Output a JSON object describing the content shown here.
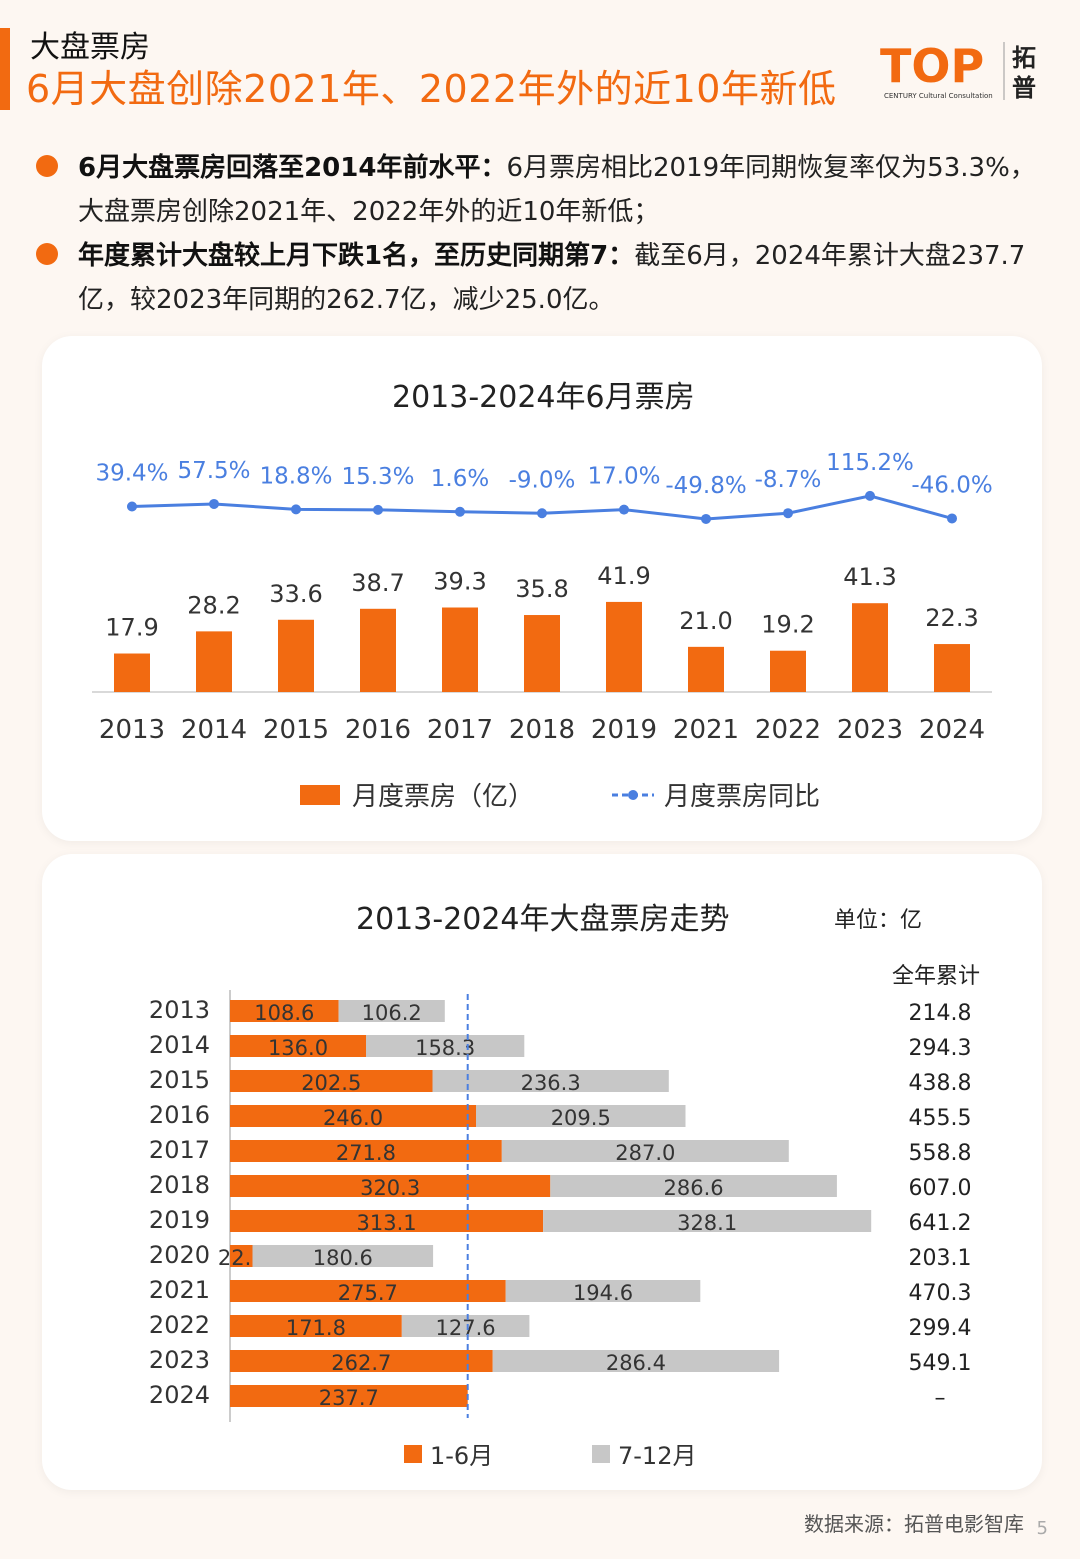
{
  "header": {
    "kicker": "大盘票房",
    "title": "6月大盘创除2021年、2022年外的近10年新低",
    "logo_text": "TOP",
    "logo_sub": "CENTURY Cultural Consultation",
    "logo_brand": "拓普"
  },
  "bullets": [
    {
      "bold": "6月大盘票房回落至2014年前水平：",
      "text": "6月票房相比2019年同期恢复率仅为53.3%，大盘票房创除2021年、2022年外的近10年新低；"
    },
    {
      "bold": "年度累计大盘较上月下跌1名，至历史同期第7：",
      "text": "截至6月，2024年累计大盘237.7亿，较2023年同期的262.7亿，减少25.0亿。"
    }
  ],
  "colors": {
    "accent": "#f26a11",
    "line": "#4a7fe0",
    "gray": "#c7c7c7"
  },
  "chart_data": [
    {
      "type": "bar",
      "title": "2013-2024年6月票房",
      "categories": [
        "2013",
        "2014",
        "2015",
        "2016",
        "2017",
        "2018",
        "2019",
        "2021",
        "2022",
        "2023",
        "2024"
      ],
      "series": [
        {
          "name": "月度票房（亿）",
          "type": "bar",
          "values": [
            17.9,
            28.2,
            33.6,
            38.7,
            39.3,
            35.8,
            41.9,
            21.0,
            19.2,
            41.3,
            22.3
          ]
        },
        {
          "name": "月度票房同比",
          "type": "line",
          "values": [
            39.4,
            57.5,
            18.8,
            15.3,
            1.6,
            -9.0,
            17.0,
            -49.8,
            -8.7,
            115.2,
            -46.0
          ],
          "labels": [
            "39.4%",
            "57.5%",
            "18.8%",
            "15.3%",
            "1.6%",
            "-9.0%",
            "17.0%",
            "-49.8%",
            "-8.7%",
            "115.2%",
            "-46.0%"
          ]
        }
      ],
      "bar_labels": [
        "17.9",
        "28.2",
        "33.6",
        "38.7",
        "39.3",
        "35.8",
        "41.9",
        "21.0",
        "19.2",
        "41.3",
        "22.3"
      ]
    },
    {
      "type": "bar",
      "orientation": "horizontal",
      "stacked": true,
      "title": "2013-2024年大盘票房走势",
      "unit": "单位：亿",
      "total_header": "全年累计",
      "categories": [
        "2013",
        "2014",
        "2015",
        "2016",
        "2017",
        "2018",
        "2019",
        "2020",
        "2021",
        "2022",
        "2023",
        "2024"
      ],
      "series": [
        {
          "name": "1-6月",
          "values": [
            108.6,
            136.0,
            202.5,
            246.0,
            271.8,
            320.3,
            313.1,
            22.5,
            275.7,
            171.8,
            262.7,
            237.7
          ],
          "labels": [
            "108.6",
            "136.0",
            "202.5",
            "246.0",
            "271.8",
            "320.3",
            "313.1",
            "22.5",
            "275.7",
            "171.8",
            "262.7",
            "237.7"
          ]
        },
        {
          "name": "7-12月",
          "values": [
            106.2,
            158.3,
            236.3,
            209.5,
            287.0,
            286.6,
            328.1,
            180.6,
            194.6,
            127.6,
            286.4,
            null
          ],
          "labels": [
            "106.2",
            "158.3",
            "236.3",
            "209.5",
            "287.0",
            "286.6",
            "328.1",
            "180.6",
            "194.6",
            "127.6",
            "286.4",
            ""
          ]
        }
      ],
      "totals": [
        "214.8",
        "294.3",
        "438.8",
        "455.5",
        "558.8",
        "607.0",
        "641.2",
        "203.1",
        "470.3",
        "299.4",
        "549.1",
        "–"
      ],
      "reference_value": 237.7
    }
  ],
  "footer": {
    "source": "数据来源：拓普电影智库",
    "page": "5"
  }
}
